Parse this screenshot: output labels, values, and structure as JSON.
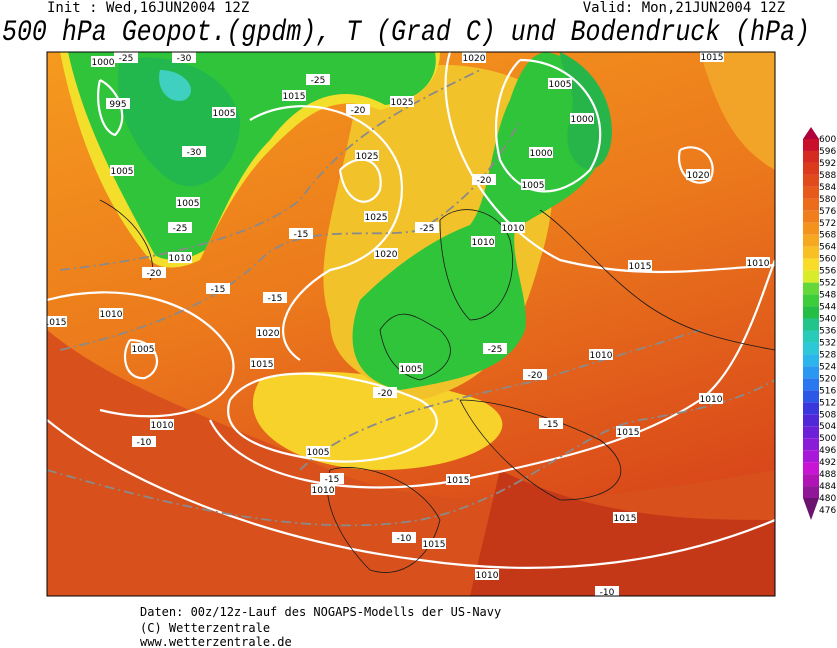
{
  "header": {
    "init": "Init : Wed,16JUN2004 12Z",
    "valid": "Valid: Mon,21JUN2004 12Z",
    "title": "500 hPa Geopot.(gpdm), T (Grad C) und Bodendruck (hPa)"
  },
  "legend": {
    "labels": [
      "600",
      "596",
      "592",
      "588",
      "584",
      "580",
      "576",
      "572",
      "568",
      "564",
      "560",
      "556",
      "552",
      "548",
      "544",
      "540",
      "536",
      "532",
      "528",
      "524",
      "520",
      "516",
      "512",
      "508",
      "504",
      "500",
      "496",
      "492",
      "488",
      "484",
      "480",
      "476"
    ]
  },
  "map": {
    "isobar_labels": [
      "1000",
      "995",
      "1005",
      "1005",
      "1010",
      "1015",
      "1025",
      "1025",
      "1025",
      "1020",
      "1020",
      "1015",
      "1010",
      "1005",
      "1010",
      "1005",
      "1010",
      "1015",
      "1015",
      "1010",
      "1015",
      "1015",
      "1010",
      "1010",
      "1010",
      "1015",
      "1020",
      "1010",
      "1010",
      "1005",
      "1000",
      "1000",
      "1005",
      "1005",
      "1005",
      "1020",
      "1015",
      "1015"
    ],
    "isotherm_labels": [
      "-25",
      "-30",
      "-25",
      "-20",
      "-30",
      "-25",
      "-20",
      "-15",
      "-15",
      "-15",
      "-25",
      "-20",
      "-25",
      "-20",
      "-20",
      "-15",
      "-10",
      "-15",
      "-10",
      "-10"
    ]
  },
  "footer": {
    "lines": [
      "Daten: 00z/12z-Lauf des NOGAPS-Modells der US-Navy",
      "(C) Wetterzentrale",
      "www.wetterzentrale.de"
    ]
  }
}
